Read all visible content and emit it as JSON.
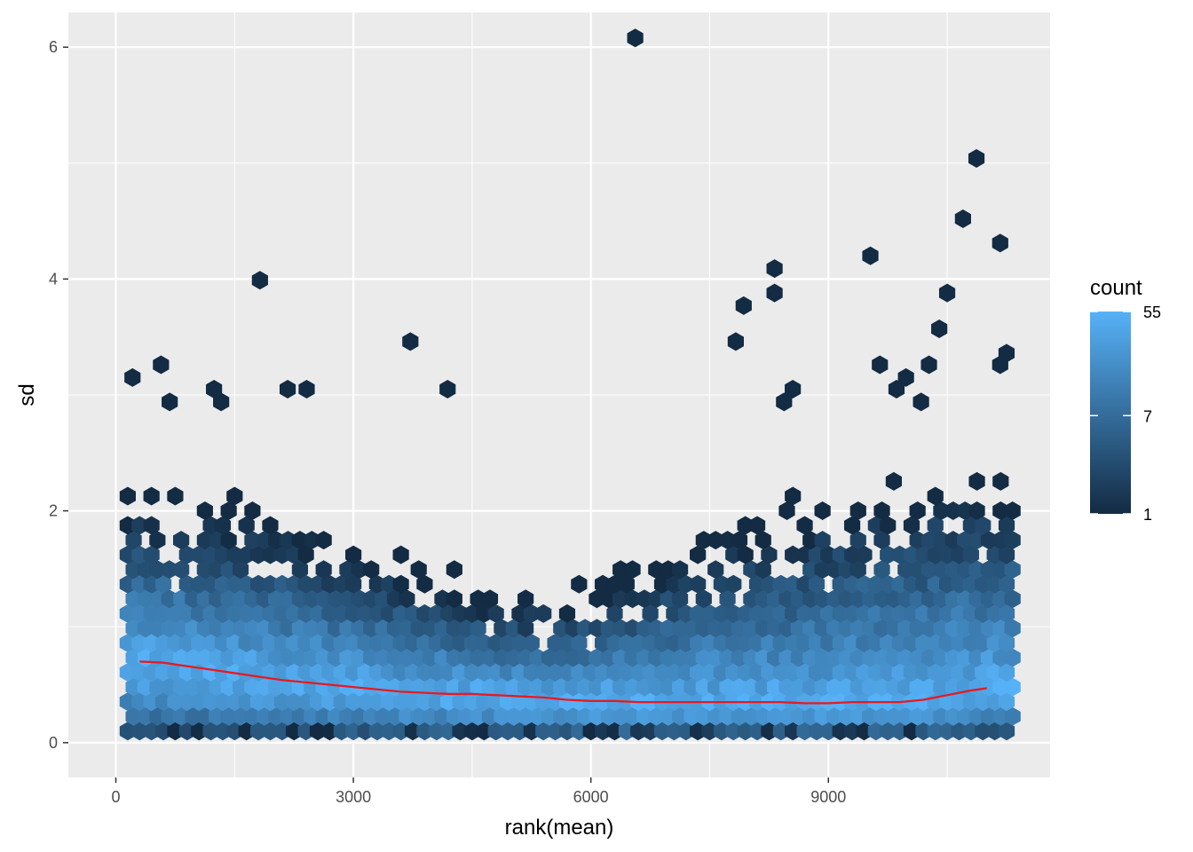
{
  "chart_data": {
    "type": "hexbin",
    "xlabel": "rank(mean)",
    "ylabel": "sd",
    "xlim": [
      -600,
      11800
    ],
    "ylim": [
      -0.3,
      6.3
    ],
    "x_ticks": [
      0,
      3000,
      6000,
      9000
    ],
    "x_tick_labels": [
      "0",
      "3000",
      "6000",
      "9000"
    ],
    "y_ticks": [
      0,
      2,
      4,
      6
    ],
    "y_tick_labels": [
      "0",
      "2",
      "4",
      "6"
    ],
    "grid": true,
    "legend": {
      "title": "count",
      "position": "right",
      "scale": "log",
      "range": [
        1,
        55
      ],
      "breaks": [
        1,
        7,
        55
      ],
      "break_labels": [
        "1",
        "7",
        "55"
      ],
      "low_color": "#132B43",
      "high_color": "#56B1F7"
    },
    "trend_line": {
      "color": "#e8191f",
      "x": [
        300,
        600,
        900,
        1200,
        1500,
        1800,
        2100,
        2400,
        2700,
        3000,
        3300,
        3600,
        3900,
        4200,
        4500,
        4800,
        5100,
        5400,
        5700,
        6000,
        6300,
        6600,
        6900,
        7200,
        7500,
        7800,
        8100,
        8400,
        8700,
        9000,
        9300,
        9600,
        9900,
        10200,
        10500,
        10800,
        11000
      ],
      "y": [
        0.7,
        0.69,
        0.66,
        0.63,
        0.6,
        0.57,
        0.54,
        0.52,
        0.5,
        0.48,
        0.46,
        0.44,
        0.43,
        0.42,
        0.42,
        0.41,
        0.4,
        0.39,
        0.37,
        0.36,
        0.36,
        0.35,
        0.35,
        0.35,
        0.35,
        0.35,
        0.35,
        0.35,
        0.34,
        0.34,
        0.35,
        0.35,
        0.35,
        0.37,
        0.41,
        0.45,
        0.47
      ]
    },
    "outliers": [
      [
        6560,
        6.08
      ],
      [
        10870,
        5.04
      ],
      [
        10700,
        4.52
      ],
      [
        11170,
        4.31
      ],
      [
        9530,
        4.2
      ],
      [
        8320,
        4.09
      ],
      [
        1820,
        3.99
      ],
      [
        8320,
        3.88
      ],
      [
        10500,
        3.88
      ],
      [
        7930,
        3.77
      ],
      [
        10400,
        3.57
      ],
      [
        3720,
        3.46
      ],
      [
        7830,
        3.46
      ],
      [
        11250,
        3.36
      ],
      [
        11170,
        3.26
      ],
      [
        10270,
        3.26
      ],
      [
        9650,
        3.26
      ],
      [
        570,
        3.26
      ],
      [
        210,
        3.15
      ],
      [
        9980,
        3.15
      ],
      [
        1240,
        3.05
      ],
      [
        2170,
        3.05
      ],
      [
        2410,
        3.05
      ],
      [
        4190,
        3.05
      ],
      [
        8550,
        3.05
      ],
      [
        9860,
        3.05
      ],
      [
        10170,
        2.94
      ],
      [
        8440,
        2.94
      ],
      [
        1330,
        2.94
      ],
      [
        680,
        2.94
      ]
    ]
  }
}
